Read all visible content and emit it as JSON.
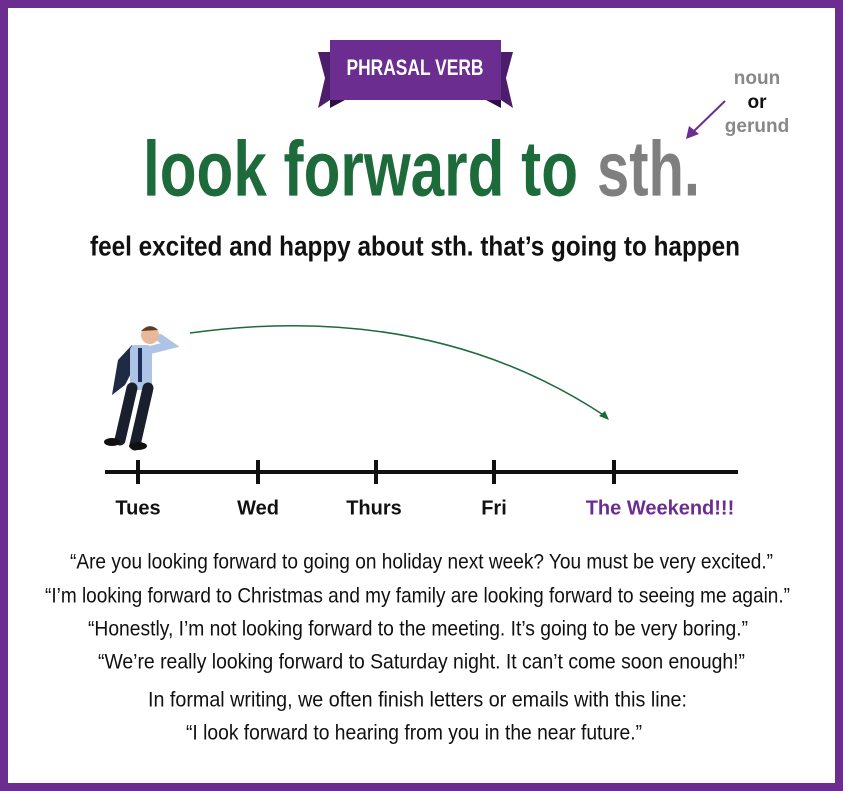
{
  "badge": "PHRASAL VERB",
  "title": {
    "verb": "look forward to",
    "object": "sth."
  },
  "note": {
    "line1": "noun",
    "line2": "or",
    "line3": "gerund"
  },
  "definition": "feel excited and happy about sth. that’s going to happen",
  "timeline": [
    "Tues",
    "Wed",
    "Thurs",
    "Fri",
    "The Weekend!!!"
  ],
  "examples": [
    "“Are you looking forward to going on holiday next week? You must be very excited.”",
    "“I’m looking forward to Christmas and my family are looking forward to seeing me again.”",
    "“Honestly, I’m not looking forward to the meeting. It’s going to be very boring.”",
    "“We’re really looking forward to Saturday night. It can’t come soon enough!”"
  ],
  "formal": {
    "intro": "In formal writing, we often finish letters or emails with this line:",
    "example": "“I look forward to hearing from you in the near future.”"
  }
}
